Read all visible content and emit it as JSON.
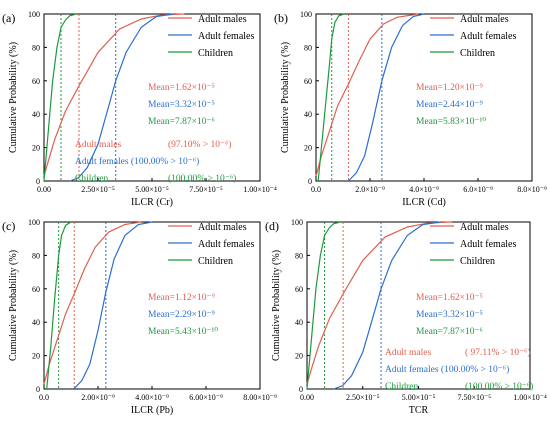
{
  "colors": {
    "adult_males": "#e0604f",
    "adult_females": "#2a6fd0",
    "children": "#1e9a3e",
    "axis": "#000000"
  },
  "chart_data": [
    {
      "type": "line",
      "panel_label": "(a)",
      "xlabel": "ILCR (Cr)",
      "ylabel": "Cumulative Probability (%)",
      "xlim": [
        0,
        0.0001
      ],
      "ylim": [
        0,
        100
      ],
      "x_ticks": [
        "0.00",
        "2.50×10⁻⁵",
        "5.00×10⁻⁵",
        "7.50×10⁻⁵",
        "1.00×10⁻⁴"
      ],
      "y_ticks": [
        "0",
        "20",
        "40",
        "60",
        "80",
        "100"
      ],
      "legend": [
        "Adult males",
        "Adult females",
        "Children"
      ],
      "legend_position": "top-right",
      "series": [
        {
          "name": "Adult males",
          "key": "adult_males",
          "x": [
            0,
            2e-06,
            5e-06,
            1e-05,
            1.62e-05,
            2.5e-05,
            3.5e-05,
            4.5e-05,
            5.5e-05,
            6.5e-05
          ],
          "y": [
            3,
            12,
            25,
            42,
            57,
            77,
            91,
            97,
            99.5,
            100
          ]
        },
        {
          "name": "Adult females",
          "key": "adult_females",
          "x": [
            1.2e-05,
            1.6e-05,
            2e-05,
            2.5e-05,
            3e-05,
            3.32e-05,
            3.8e-05,
            4.5e-05,
            5.2e-05,
            6e-05
          ],
          "y": [
            0,
            2,
            8,
            22,
            45,
            60,
            77,
            92,
            98.5,
            100
          ]
        },
        {
          "name": "Children",
          "key": "children",
          "x": [
            0,
            2e-06,
            4e-06,
            6e-06,
            7.9e-06,
            1e-05,
            1.2e-05,
            1.5e-05
          ],
          "y": [
            0,
            30,
            60,
            80,
            92,
            96.5,
            99,
            100
          ]
        }
      ],
      "mean_lines": [
        1.62e-05,
        3.32e-05,
        7.87e-06
      ],
      "means": [
        "Mean=1.62×10⁻⁵",
        "Mean=3.32×10⁻⁵",
        "Mean=7.87×10⁻⁶"
      ],
      "exceedance": [
        {
          "label": "Adult males",
          "value": "(97.10% > 10⁻⁶)"
        },
        {
          "label": "Adult females (100.00% > 10⁻⁶)",
          "value": ""
        },
        {
          "label": "Children",
          "value": "(100.00% > 10⁻⁶)"
        }
      ]
    },
    {
      "type": "line",
      "panel_label": "(b)",
      "xlabel": "ILCR (Cd)",
      "ylabel": "Cumulative Probability (%)",
      "xlim": [
        0,
        8e-09
      ],
      "ylim": [
        0,
        100
      ],
      "x_ticks": [
        "0.0",
        "2.0×10⁻⁹",
        "4.0×10⁻⁹",
        "6.0×10⁻⁹",
        "8.0×10⁻⁹"
      ],
      "y_ticks": [
        "0",
        "20",
        "40",
        "60",
        "80",
        "100"
      ],
      "legend": [
        "Adult males",
        "Adult females",
        "Children"
      ],
      "legend_position": "top-right",
      "series": [
        {
          "name": "Adult males",
          "key": "adult_males",
          "x": [
            0,
            2e-10,
            5e-10,
            8e-10,
            1.2e-09,
            1.6e-09,
            2e-09,
            2.5e-09,
            3e-09,
            3.8e-09
          ],
          "y": [
            3,
            15,
            30,
            45,
            58,
            72,
            85,
            94,
            98,
            100
          ]
        },
        {
          "name": "Adult females",
          "key": "adult_females",
          "x": [
            1.2e-09,
            1.5e-09,
            1.8e-09,
            2.1e-09,
            2.44e-09,
            2.8e-09,
            3.2e-09,
            3.6e-09,
            4e-09
          ],
          "y": [
            0,
            5,
            15,
            35,
            60,
            80,
            93,
            98.5,
            100
          ]
        },
        {
          "name": "Children",
          "key": "children",
          "x": [
            8e-11,
            2e-10,
            3.5e-10,
            5e-10,
            5.83e-10,
            7e-10,
            8.5e-10,
            1.05e-09
          ],
          "y": [
            0,
            20,
            45,
            70,
            85,
            95,
            99,
            100
          ]
        }
      ],
      "mean_lines": [
        1.2e-09,
        2.44e-09,
        5.83e-10
      ],
      "means": [
        "Mean=1.20×10⁻⁹",
        "Mean=2.44×10⁻⁹",
        "Mean=5.83×10⁻¹⁰"
      ],
      "exceedance": []
    },
    {
      "type": "line",
      "panel_label": "(c)",
      "xlabel": "ILCR (Pb)",
      "ylabel": "Cumulative Probability (%)",
      "xlim": [
        0,
        8e-09
      ],
      "ylim": [
        0,
        100
      ],
      "x_ticks": [
        "0.0",
        "2.00×10⁻⁹",
        "4.00×10⁻⁹",
        "6.00×10⁻⁹",
        "8.00×10⁻⁹"
      ],
      "y_ticks": [
        "0",
        "20",
        "40",
        "60",
        "80",
        "100"
      ],
      "legend": [
        "Adult males",
        "Adult females",
        "Children"
      ],
      "legend_position": "top-right",
      "series": [
        {
          "name": "Adult males",
          "key": "adult_males",
          "x": [
            0,
            2e-10,
            5e-10,
            8e-10,
            1.12e-09,
            1.5e-09,
            1.9e-09,
            2.4e-09,
            3e-09,
            3.6e-09
          ],
          "y": [
            3,
            15,
            30,
            45,
            57,
            72,
            85,
            94,
            98.5,
            100
          ]
        },
        {
          "name": "Adult females",
          "key": "adult_females",
          "x": [
            1.1e-09,
            1.4e-09,
            1.7e-09,
            2e-09,
            2.29e-09,
            2.6e-09,
            3e-09,
            3.5e-09,
            4e-09
          ],
          "y": [
            0,
            5,
            15,
            35,
            58,
            78,
            92,
            98.5,
            100
          ]
        },
        {
          "name": "Children",
          "key": "children",
          "x": [
            1e-10,
            2.5e-10,
            4e-10,
            5.43e-10,
            6.5e-10,
            8e-10,
            1e-09
          ],
          "y": [
            0,
            25,
            55,
            80,
            92,
            98,
            100
          ]
        }
      ],
      "mean_lines": [
        1.12e-09,
        2.29e-09,
        5.43e-10
      ],
      "means": [
        "Mean=1.12×10⁻⁹",
        "Mean=2.29×10⁻⁹",
        "Mean=5.43×10⁻¹⁰"
      ],
      "exceedance": []
    },
    {
      "type": "line",
      "panel_label": "(d)",
      "xlabel": "TCR",
      "ylabel": "Cumulative Probability (%)",
      "xlim": [
        0,
        0.0001
      ],
      "ylim": [
        0,
        100
      ],
      "x_ticks": [
        "0.00",
        "2.50×10⁻⁵",
        "5.00×10⁻⁵",
        "7.50×10⁻⁵",
        "1.00×10⁻⁴"
      ],
      "y_ticks": [
        "0",
        "20",
        "40",
        "60",
        "80",
        "100"
      ],
      "legend": [
        "Adult males",
        "Adult females",
        "Children"
      ],
      "legend_position": "top-right",
      "series": [
        {
          "name": "Adult males",
          "key": "adult_males",
          "x": [
            0,
            2e-06,
            5e-06,
            1e-05,
            1.62e-05,
            2.5e-05,
            3.5e-05,
            4.5e-05,
            5.5e-05,
            6.5e-05
          ],
          "y": [
            3,
            12,
            25,
            42,
            57,
            77,
            91,
            97,
            99.5,
            100
          ]
        },
        {
          "name": "Adult females",
          "key": "adult_females",
          "x": [
            1.2e-05,
            1.6e-05,
            2e-05,
            2.5e-05,
            3e-05,
            3.32e-05,
            3.8e-05,
            4.5e-05,
            5.2e-05,
            6e-05
          ],
          "y": [
            0,
            2,
            8,
            22,
            45,
            60,
            77,
            92,
            98.5,
            100
          ]
        },
        {
          "name": "Children",
          "key": "children",
          "x": [
            0,
            2e-06,
            4e-06,
            6e-06,
            7.9e-06,
            1e-05,
            1.2e-05,
            1.5e-05
          ],
          "y": [
            0,
            30,
            60,
            80,
            92,
            96.5,
            99,
            100
          ]
        }
      ],
      "mean_lines": [
        1.62e-05,
        3.32e-05,
        7.87e-06
      ],
      "means": [
        "Mean=1.62×10⁻⁵",
        "Mean=3.32×10⁻⁵",
        "Mean=7.87×10⁻⁶"
      ],
      "exceedance": [
        {
          "label": "Adult males",
          "value": "( 97.11% > 10⁻⁶)"
        },
        {
          "label": "Adult females (100.00% > 10⁻⁶)",
          "value": ""
        },
        {
          "label": "Children",
          "value": "(100.00% > 10⁻⁶)"
        }
      ]
    }
  ]
}
